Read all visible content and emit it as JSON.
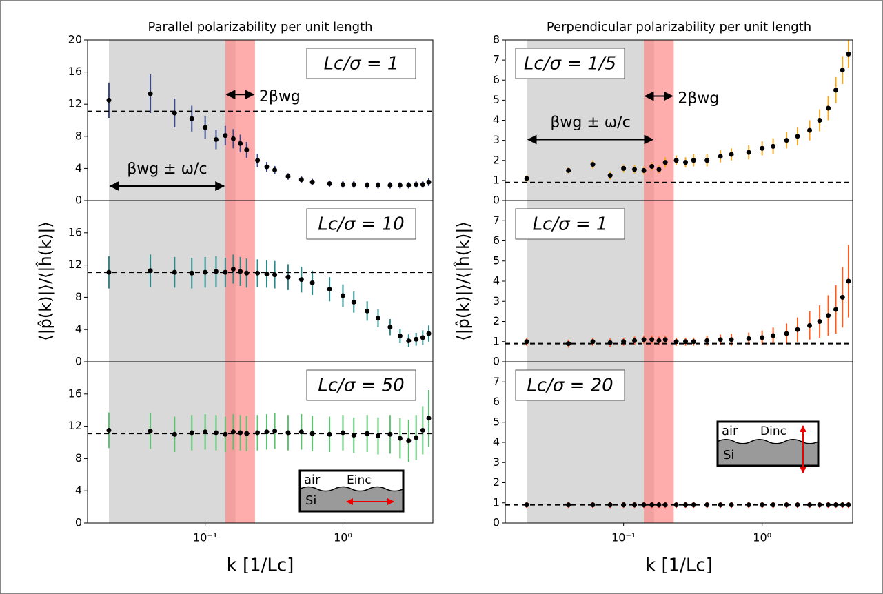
{
  "chart_data": [
    {
      "type": "errorbar",
      "title": "Parallel polarizability per unit length",
      "annotation": "Lc/σ = 1",
      "color": "#3b4a8a",
      "x": [
        0.02,
        0.04,
        0.06,
        0.08,
        0.1,
        0.12,
        0.14,
        0.16,
        0.18,
        0.2,
        0.24,
        0.28,
        0.32,
        0.4,
        0.5,
        0.6,
        0.8,
        1.0,
        1.2,
        1.5,
        1.8,
        2.2,
        2.6,
        3.0,
        3.4,
        3.8,
        4.2
      ],
      "values": [
        12.5,
        13.3,
        10.9,
        10.2,
        9.1,
        7.6,
        8.1,
        7.7,
        7.1,
        6.3,
        5.0,
        4.2,
        3.8,
        3.0,
        2.6,
        2.3,
        2.1,
        2.0,
        2.0,
        1.9,
        1.9,
        1.9,
        1.9,
        1.9,
        2.0,
        2.0,
        2.3
      ],
      "errors": [
        2.2,
        2.4,
        1.8,
        1.6,
        1.4,
        1.2,
        1.2,
        1.2,
        1.1,
        1.0,
        0.8,
        0.6,
        0.5,
        0.4,
        0.4,
        0.4,
        0.4,
        0.4,
        0.4,
        0.4,
        0.4,
        0.4,
        0.4,
        0.4,
        0.4,
        0.4,
        0.5
      ],
      "reference_line": 11.1,
      "xlim": [
        0.014,
        4.5
      ],
      "ylim": [
        0,
        20
      ],
      "yticks": [
        0,
        4,
        8,
        12,
        16,
        20
      ],
      "bands": [
        {
          "range": [
            0.02,
            0.166
          ],
          "color": "#d9d9d9"
        },
        {
          "range": [
            0.14,
            0.23
          ],
          "color": "#ff8080"
        }
      ],
      "notes": [
        {
          "text": "2βwg",
          "range": [
            0.14,
            0.23
          ]
        },
        {
          "text": "βwg ± ω/c",
          "range": [
            0.02,
            0.14
          ]
        }
      ]
    },
    {
      "type": "errorbar",
      "annotation": "Lc/σ = 10",
      "color": "#2a8a8a",
      "ylabel": "⟨|p̂(k)|⟩/⟨|ĥ(k)|⟩",
      "x": [
        0.02,
        0.04,
        0.06,
        0.08,
        0.1,
        0.12,
        0.14,
        0.16,
        0.18,
        0.2,
        0.24,
        0.28,
        0.32,
        0.4,
        0.5,
        0.6,
        0.8,
        1.0,
        1.2,
        1.5,
        1.8,
        2.2,
        2.6,
        3.0,
        3.4,
        3.8,
        4.2
      ],
      "values": [
        11.1,
        11.3,
        11.1,
        11.0,
        11.1,
        11.2,
        11.1,
        11.5,
        11.2,
        11.0,
        11.0,
        10.9,
        10.8,
        10.5,
        10.2,
        9.8,
        9.0,
        8.2,
        7.4,
        6.3,
        5.4,
        4.3,
        3.2,
        2.6,
        2.8,
        3.0,
        3.5
      ],
      "errors": [
        2.0,
        2.0,
        1.9,
        1.9,
        1.9,
        1.9,
        1.8,
        1.8,
        1.8,
        1.8,
        1.7,
        1.7,
        1.7,
        1.6,
        1.6,
        1.5,
        1.5,
        1.4,
        1.3,
        1.2,
        1.1,
        1.0,
        0.9,
        0.8,
        0.8,
        0.9,
        1.0
      ],
      "reference_line": 11.1,
      "xlim": [
        0.014,
        4.5
      ],
      "ylim": [
        0,
        20
      ],
      "yticks": [
        0,
        4,
        8,
        12,
        16
      ],
      "bands": [
        {
          "range": [
            0.02,
            0.166
          ],
          "color": "#d9d9d9"
        },
        {
          "range": [
            0.14,
            0.23
          ],
          "color": "#ff8080"
        }
      ]
    },
    {
      "type": "errorbar",
      "annotation": "Lc/σ = 50",
      "color": "#5bc26f",
      "xlabel": "k [1/Lc]",
      "x": [
        0.02,
        0.04,
        0.06,
        0.08,
        0.1,
        0.12,
        0.14,
        0.16,
        0.18,
        0.2,
        0.24,
        0.28,
        0.32,
        0.4,
        0.5,
        0.6,
        0.8,
        1.0,
        1.2,
        1.5,
        1.8,
        2.2,
        2.6,
        3.0,
        3.4,
        3.8,
        4.2
      ],
      "values": [
        11.5,
        11.4,
        11.0,
        11.2,
        11.3,
        11.2,
        11.0,
        11.3,
        11.2,
        11.1,
        11.2,
        11.3,
        11.4,
        11.2,
        11.3,
        11.1,
        11.0,
        11.2,
        10.9,
        11.1,
        10.8,
        11.0,
        10.5,
        10.2,
        10.6,
        11.5,
        13.0
      ],
      "errors": [
        2.2,
        2.2,
        2.2,
        2.2,
        2.2,
        2.2,
        2.2,
        2.2,
        2.2,
        2.2,
        2.2,
        2.2,
        2.2,
        2.2,
        2.2,
        2.2,
        2.2,
        2.2,
        2.2,
        2.3,
        2.3,
        2.4,
        2.5,
        2.6,
        2.8,
        3.0,
        3.5
      ],
      "reference_line": 11.1,
      "xlim": [
        0.014,
        4.5
      ],
      "ylim": [
        0,
        20
      ],
      "yticks": [
        0,
        4,
        8,
        12,
        16
      ],
      "xticks": [
        {
          "value": 0.1,
          "label": "10⁻¹"
        },
        {
          "value": 1,
          "label": "10⁰"
        }
      ],
      "bands": [
        {
          "range": [
            0.02,
            0.166
          ],
          "color": "#d9d9d9"
        },
        {
          "range": [
            0.14,
            0.23
          ],
          "color": "#ff8080"
        }
      ],
      "inset": {
        "labels": [
          "air",
          "Si",
          "Einc"
        ]
      }
    },
    {
      "type": "errorbar",
      "title": "Perpendicular polarizability per unit length",
      "annotation": "Lc/σ = 1/5",
      "color": "#f5a623",
      "x": [
        0.02,
        0.04,
        0.06,
        0.08,
        0.1,
        0.12,
        0.14,
        0.16,
        0.18,
        0.2,
        0.24,
        0.28,
        0.32,
        0.4,
        0.5,
        0.6,
        0.8,
        1.0,
        1.2,
        1.5,
        1.8,
        2.2,
        2.6,
        3.0,
        3.4,
        3.8,
        4.2
      ],
      "values": [
        1.1,
        1.5,
        1.8,
        1.25,
        1.6,
        1.55,
        1.5,
        1.7,
        1.55,
        1.9,
        2.0,
        1.9,
        2.0,
        2.0,
        2.2,
        2.3,
        2.4,
        2.6,
        2.7,
        3.0,
        3.2,
        3.5,
        4.0,
        4.6,
        5.5,
        6.5,
        7.3
      ],
      "errors": [
        0.15,
        0.15,
        0.2,
        0.2,
        0.2,
        0.2,
        0.2,
        0.2,
        0.2,
        0.25,
        0.25,
        0.25,
        0.3,
        0.3,
        0.3,
        0.3,
        0.35,
        0.35,
        0.4,
        0.4,
        0.45,
        0.5,
        0.55,
        0.6,
        0.65,
        0.7,
        0.7
      ],
      "reference_line": 0.9,
      "xlim": [
        0.014,
        4.5
      ],
      "ylim": [
        0,
        8
      ],
      "yticks": [
        0,
        1,
        2,
        3,
        4,
        5,
        6,
        7,
        8
      ],
      "bands": [
        {
          "range": [
            0.02,
            0.166
          ],
          "color": "#d9d9d9"
        },
        {
          "range": [
            0.14,
            0.23
          ],
          "color": "#ff8080"
        }
      ],
      "notes": [
        {
          "text": "2βwg",
          "range": [
            0.14,
            0.23
          ]
        },
        {
          "text": "βwg ± ω/c",
          "range": [
            0.02,
            0.166
          ]
        }
      ]
    },
    {
      "type": "errorbar",
      "annotation": "Lc/σ = 1",
      "color": "#ff5a1f",
      "ylabel": "⟨|p̂(k)|⟩/⟨|ĥ(k)|⟩",
      "x": [
        0.02,
        0.04,
        0.06,
        0.08,
        0.1,
        0.12,
        0.14,
        0.16,
        0.18,
        0.2,
        0.24,
        0.28,
        0.32,
        0.4,
        0.5,
        0.6,
        0.8,
        1.0,
        1.2,
        1.5,
        1.8,
        2.2,
        2.6,
        3.0,
        3.4,
        3.8,
        4.2
      ],
      "values": [
        1.0,
        0.9,
        1.0,
        0.95,
        1.0,
        1.05,
        1.1,
        1.1,
        1.05,
        1.1,
        1.0,
        1.0,
        1.0,
        1.05,
        1.1,
        1.1,
        1.15,
        1.2,
        1.3,
        1.4,
        1.6,
        1.8,
        2.0,
        2.3,
        2.6,
        3.2,
        4.0
      ],
      "errors": [
        0.2,
        0.2,
        0.2,
        0.2,
        0.2,
        0.2,
        0.2,
        0.2,
        0.2,
        0.2,
        0.2,
        0.2,
        0.2,
        0.25,
        0.25,
        0.3,
        0.3,
        0.35,
        0.4,
        0.5,
        0.6,
        0.7,
        0.8,
        1.0,
        1.2,
        1.5,
        1.8
      ],
      "reference_line": 0.9,
      "xlim": [
        0.014,
        4.5
      ],
      "ylim": [
        0,
        8
      ],
      "yticks": [
        0,
        1,
        2,
        3,
        4,
        5,
        6,
        7
      ],
      "bands": [
        {
          "range": [
            0.02,
            0.166
          ],
          "color": "#d9d9d9"
        },
        {
          "range": [
            0.14,
            0.23
          ],
          "color": "#ff8080"
        }
      ]
    },
    {
      "type": "errorbar",
      "annotation": "Lc/σ = 20",
      "color": "#e8261b",
      "xlabel": "k [1/Lc]",
      "x": [
        0.02,
        0.04,
        0.06,
        0.08,
        0.1,
        0.12,
        0.14,
        0.16,
        0.18,
        0.2,
        0.24,
        0.28,
        0.32,
        0.4,
        0.5,
        0.6,
        0.8,
        1.0,
        1.2,
        1.5,
        1.8,
        2.2,
        2.6,
        3.0,
        3.4,
        3.8,
        4.2
      ],
      "values": [
        0.9,
        0.9,
        0.9,
        0.9,
        0.9,
        0.9,
        0.9,
        0.9,
        0.9,
        0.9,
        0.9,
        0.9,
        0.9,
        0.9,
        0.9,
        0.9,
        0.9,
        0.9,
        0.9,
        0.9,
        0.9,
        0.9,
        0.9,
        0.9,
        0.9,
        0.9,
        0.9
      ],
      "errors": [
        0.15,
        0.15,
        0.15,
        0.15,
        0.15,
        0.15,
        0.15,
        0.15,
        0.15,
        0.15,
        0.15,
        0.15,
        0.15,
        0.15,
        0.15,
        0.15,
        0.15,
        0.15,
        0.15,
        0.15,
        0.15,
        0.15,
        0.15,
        0.15,
        0.15,
        0.15,
        0.15
      ],
      "reference_line": 0.9,
      "xlim": [
        0.014,
        4.5
      ],
      "ylim": [
        0,
        8
      ],
      "yticks": [
        0,
        1,
        2,
        3,
        4,
        5,
        6,
        7
      ],
      "xticks": [
        {
          "value": 0.1,
          "label": "10⁻¹"
        },
        {
          "value": 1,
          "label": "10⁰"
        }
      ],
      "bands": [
        {
          "range": [
            0.02,
            0.166
          ],
          "color": "#d9d9d9"
        },
        {
          "range": [
            0.14,
            0.23
          ],
          "color": "#ff8080"
        }
      ],
      "inset": {
        "labels": [
          "air",
          "Si",
          "Dinc"
        ]
      }
    }
  ]
}
